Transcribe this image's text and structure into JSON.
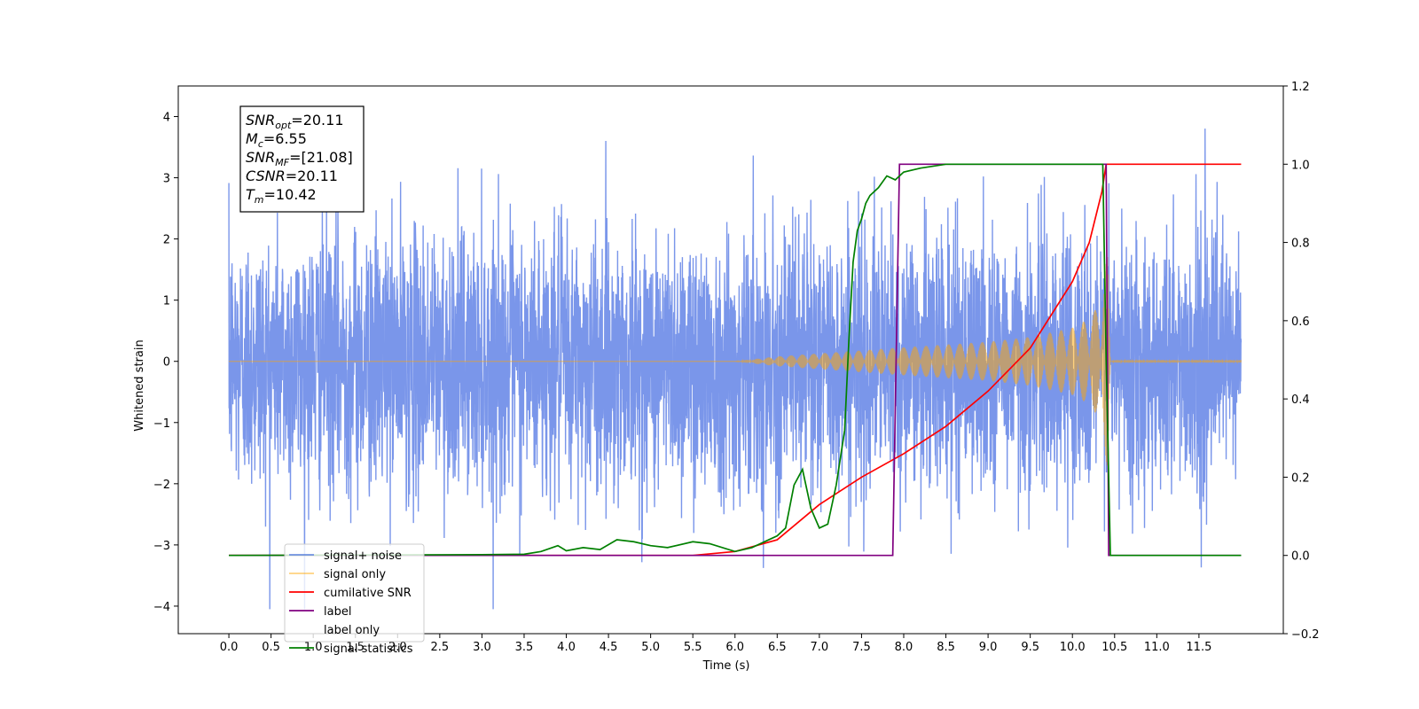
{
  "chart_data": {
    "type": "line",
    "title": "",
    "xlabel": "Time (s)",
    "ylabel": "Whitened strain",
    "y2label": "",
    "xlim": [
      -0.6,
      12.5
    ],
    "ylim": [
      -4.45,
      4.5
    ],
    "y2lim": [
      -0.2,
      1.2
    ],
    "xticks": [
      0.0,
      0.5,
      1.0,
      1.5,
      2.0,
      2.5,
      3.0,
      3.5,
      4.0,
      4.5,
      5.0,
      5.5,
      6.0,
      6.5,
      7.0,
      7.5,
      8.0,
      8.5,
      9.0,
      9.5,
      10.0,
      10.5,
      11.0,
      11.5
    ],
    "xtick_labels": [
      "0.0",
      "0.5",
      "1.0",
      "1.5",
      "2.0",
      "2.5",
      "3.0",
      "3.5",
      "4.0",
      "4.5",
      "5.0",
      "5.5",
      "6.0",
      "6.5",
      "7.0",
      "7.5",
      "8.0",
      "8.5",
      "9.0",
      "9.5",
      "10.0",
      "10.5",
      "11.0",
      "11.5"
    ],
    "yticks": [
      -4,
      -3,
      -2,
      -1,
      0,
      1,
      2,
      3,
      4
    ],
    "ytick_labels": [
      "−4",
      "−3",
      "−2",
      "−1",
      "0",
      "1",
      "2",
      "3",
      "4"
    ],
    "y2ticks": [
      -0.2,
      0.0,
      0.2,
      0.4,
      0.6,
      0.8,
      1.0,
      1.2
    ],
    "y2tick_labels": [
      "−0.2",
      "0.0",
      "0.2",
      "0.4",
      "0.6",
      "0.8",
      "1.0",
      "1.2"
    ],
    "grid": false,
    "legend_position": "lower-left",
    "annotation": [
      {
        "base": "SNR",
        "sub": "opt",
        "value": "=20.11"
      },
      {
        "base": "M",
        "sub": "c",
        "value": "=6.55"
      },
      {
        "base": "SNR",
        "sub": "MF",
        "value": "=[21.08]"
      },
      {
        "base": "CSNR",
        "sub": "",
        "value": "=20.11"
      },
      {
        "base": "T",
        "sub": "m",
        "value": "=10.42"
      }
    ],
    "series": [
      {
        "name": "signal+ noise",
        "axis": "left",
        "color": "#4169e1",
        "opacity": 0.7,
        "kind": "noise",
        "x_range": [
          0.0,
          12.0
        ],
        "sigma": 1.0,
        "min": -4.05,
        "max": 4.12
      },
      {
        "name": "signal only",
        "axis": "left",
        "color": "#ffa500",
        "opacity": 0.5,
        "kind": "chirp",
        "x_range": [
          0.0,
          12.0
        ],
        "t_merger": 10.42,
        "envelope": {
          "x": [
            0.0,
            6.0,
            6.5,
            7.5,
            8.0,
            9.0,
            9.5,
            10.0,
            10.2,
            10.35,
            10.4,
            10.42,
            10.45,
            12.0
          ],
          "y": [
            0.0,
            0.0,
            0.08,
            0.18,
            0.23,
            0.32,
            0.4,
            0.55,
            0.7,
            1.0,
            1.6,
            1.9,
            0.02,
            0.02
          ]
        }
      },
      {
        "name": "cumilative SNR",
        "axis": "right",
        "color": "#ff0000",
        "x": [
          0.0,
          5.5,
          6.0,
          6.5,
          7.0,
          7.5,
          8.0,
          8.5,
          9.0,
          9.5,
          10.0,
          10.2,
          10.35,
          10.4,
          12.0
        ],
        "y": [
          0.0,
          0.0,
          0.01,
          0.04,
          0.13,
          0.2,
          0.26,
          0.33,
          0.42,
          0.53,
          0.7,
          0.8,
          0.93,
          1.0,
          1.0
        ]
      },
      {
        "name": "label",
        "axis": "right",
        "color": "#800080",
        "x": [
          0.0,
          7.87,
          7.95,
          10.4,
          10.43,
          12.0
        ],
        "y": [
          0.0,
          0.0,
          1.0,
          1.0,
          0.0,
          0.0
        ]
      },
      {
        "name": "label only",
        "axis": "right",
        "color": "#ffffff",
        "legend_only": true,
        "x": [],
        "y": []
      },
      {
        "name": "signal statistics",
        "axis": "right",
        "color": "#008000",
        "x": [
          0.0,
          3.0,
          3.5,
          3.7,
          3.9,
          4.0,
          4.2,
          4.4,
          4.6,
          4.8,
          5.0,
          5.2,
          5.5,
          5.7,
          6.0,
          6.2,
          6.4,
          6.5,
          6.6,
          6.7,
          6.8,
          6.9,
          7.0,
          7.1,
          7.2,
          7.3,
          7.35,
          7.4,
          7.45,
          7.5,
          7.55,
          7.6,
          7.7,
          7.8,
          7.9,
          8.0,
          8.2,
          8.5,
          9.0,
          10.0,
          10.36,
          10.4,
          10.45,
          12.0
        ],
        "y": [
          0.0,
          0.002,
          0.003,
          0.01,
          0.025,
          0.012,
          0.02,
          0.015,
          0.04,
          0.035,
          0.025,
          0.02,
          0.035,
          0.03,
          0.01,
          0.02,
          0.04,
          0.05,
          0.07,
          0.18,
          0.22,
          0.12,
          0.07,
          0.08,
          0.18,
          0.32,
          0.55,
          0.75,
          0.83,
          0.86,
          0.9,
          0.92,
          0.94,
          0.97,
          0.96,
          0.98,
          0.99,
          1.0,
          1.0,
          1.0,
          1.0,
          0.5,
          0.0,
          0.0
        ]
      }
    ]
  }
}
